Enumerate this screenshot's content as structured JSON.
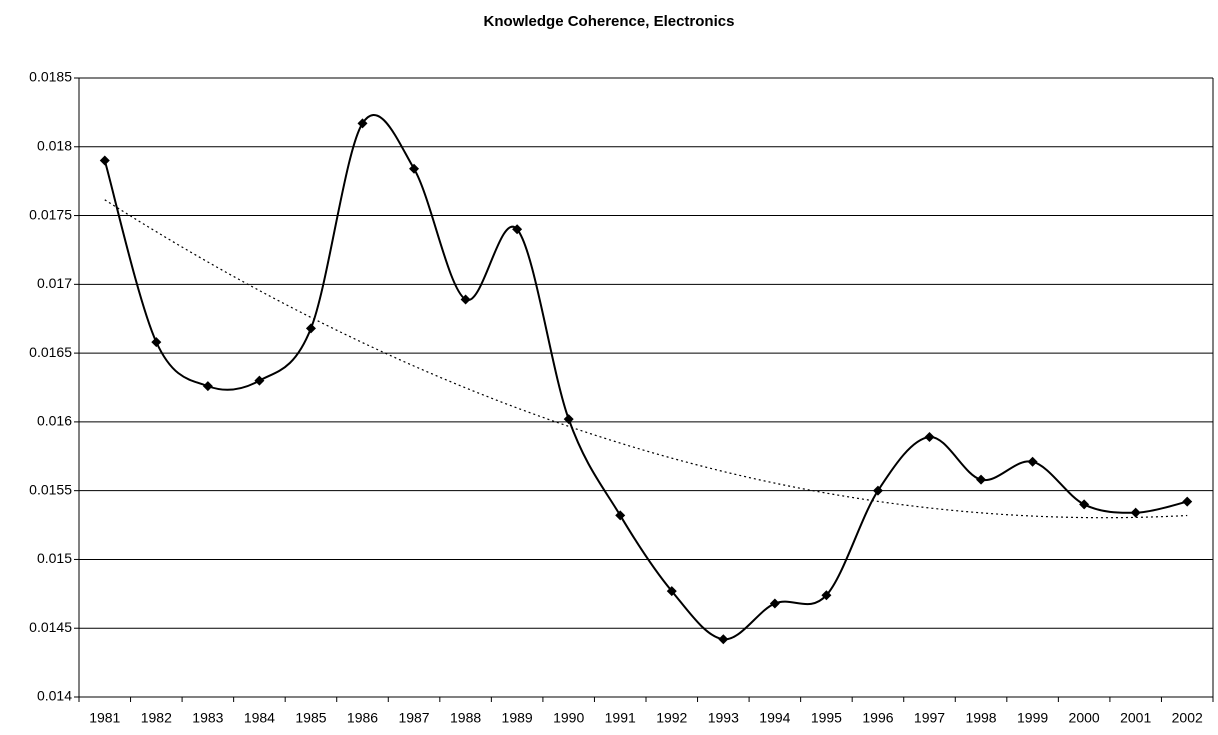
{
  "chart_data": {
    "type": "line",
    "title": "Knowledge Coherence, Electronics",
    "categories": [
      "1981",
      "1982",
      "1983",
      "1984",
      "1985",
      "1986",
      "1987",
      "1988",
      "1989",
      "1990",
      "1991",
      "1992",
      "1993",
      "1994",
      "1995",
      "1996",
      "1997",
      "1998",
      "1999",
      "2000",
      "2001",
      "2002"
    ],
    "values": [
      0.0179,
      0.01658,
      0.01626,
      0.0163,
      0.01668,
      0.01817,
      0.01784,
      0.01689,
      0.0174,
      0.01602,
      0.01532,
      0.01477,
      0.01442,
      0.01468,
      0.01474,
      0.0155,
      0.01589,
      0.01558,
      0.01571,
      0.0154,
      0.01534,
      0.01542
    ],
    "color": "#000000",
    "smooth": true,
    "marker": "diamond",
    "trendline": {
      "type": "polynomial",
      "order": 2,
      "style": "dotted"
    },
    "ylim": [
      0.014,
      0.0185
    ],
    "yticks": [
      0.014,
      0.0145,
      0.015,
      0.0155,
      0.016,
      0.0165,
      0.017,
      0.0175,
      0.018,
      0.0185
    ],
    "grid": true
  }
}
